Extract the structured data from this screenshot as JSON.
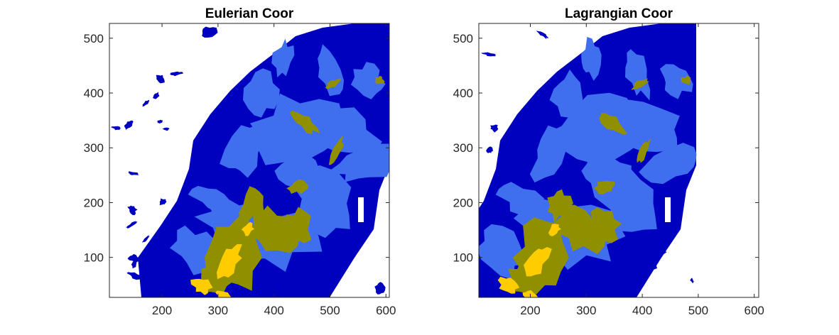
{
  "figure": {
    "background": "#ffffff"
  },
  "chart_data": [
    {
      "type": "heatmap",
      "title": "Eulerian Coor",
      "xlabel": "",
      "ylabel": "",
      "xlim": [
        106,
        606
      ],
      "ylim": [
        27,
        527
      ],
      "xticks": [
        200,
        300,
        400,
        500,
        600
      ],
      "yticks": [
        100,
        200,
        300,
        400,
        500
      ],
      "grid": false,
      "colormap": [
        "#ffffff",
        "#0000bf",
        "#3f6fef",
        "#8f8f00",
        "#ffcc00"
      ],
      "value_levels": [
        "none",
        "low",
        "medium",
        "high",
        "peak"
      ]
    },
    {
      "type": "heatmap",
      "title": "Lagrangian Coor",
      "xlabel": "",
      "ylabel": "",
      "xlim": [
        108,
        608
      ],
      "ylim": [
        27,
        527
      ],
      "xticks": [
        200,
        300,
        400,
        500,
        600
      ],
      "yticks": [
        100,
        200,
        300,
        400,
        500
      ],
      "grid": false,
      "colormap": [
        "#ffffff",
        "#0000bf",
        "#3f6fef",
        "#8f8f00",
        "#ffcc00"
      ],
      "value_levels": [
        "none",
        "low",
        "medium",
        "high",
        "peak"
      ]
    }
  ]
}
